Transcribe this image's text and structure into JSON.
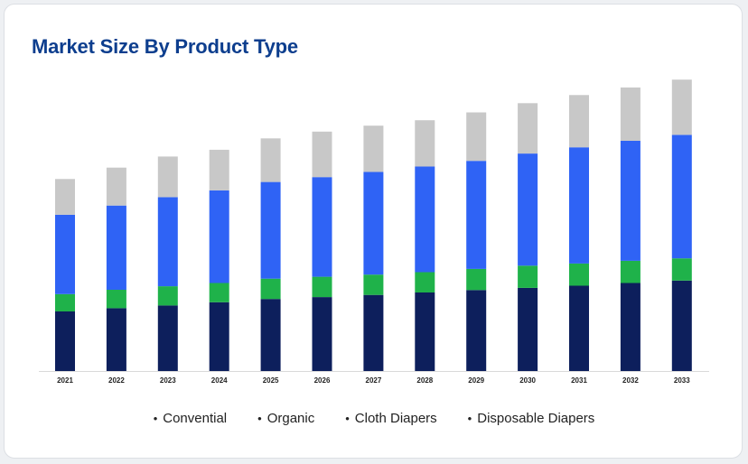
{
  "chart_data": {
    "type": "bar",
    "stacked": true,
    "title": "Market Size By Product Type",
    "xlabel": "",
    "ylabel": "",
    "ylim": [
      0,
      110
    ],
    "grid": false,
    "legend_position": "bottom",
    "categories": [
      "2021",
      "2022",
      "2023",
      "2024",
      "2025",
      "2026",
      "2027",
      "2028",
      "2029",
      "2030",
      "2031",
      "2032",
      "2033"
    ],
    "series": [
      {
        "name": "Conventional",
        "color": "#0d1f5c",
        "values": [
          22.0,
          23.2,
          24.2,
          25.4,
          26.6,
          27.3,
          28.1,
          29.0,
          29.9,
          30.7,
          31.5,
          32.5,
          33.4
        ]
      },
      {
        "name": "Organic",
        "color": "#1fb24a",
        "values": [
          6.4,
          6.8,
          7.1,
          7.1,
          7.5,
          7.5,
          7.5,
          7.5,
          7.8,
          8.2,
          8.2,
          8.2,
          8.2
        ]
      },
      {
        "name": "Cloth Diapers",
        "color": "#2f63f5",
        "values": [
          29.3,
          31.1,
          32.9,
          34.2,
          35.7,
          36.8,
          37.9,
          39.0,
          39.9,
          41.4,
          42.9,
          44.3,
          45.6
        ]
      },
      {
        "name": "Disposable Diapers",
        "color": "#c8c8c8",
        "values": [
          13.2,
          14.0,
          15.0,
          15.0,
          16.1,
          16.8,
          17.1,
          17.1,
          17.9,
          18.6,
          19.3,
          19.7,
          20.4
        ]
      }
    ]
  },
  "legend": {
    "items": [
      "Convential",
      "Organic",
      "Cloth Diapers",
      "Disposable Diapers"
    ]
  }
}
